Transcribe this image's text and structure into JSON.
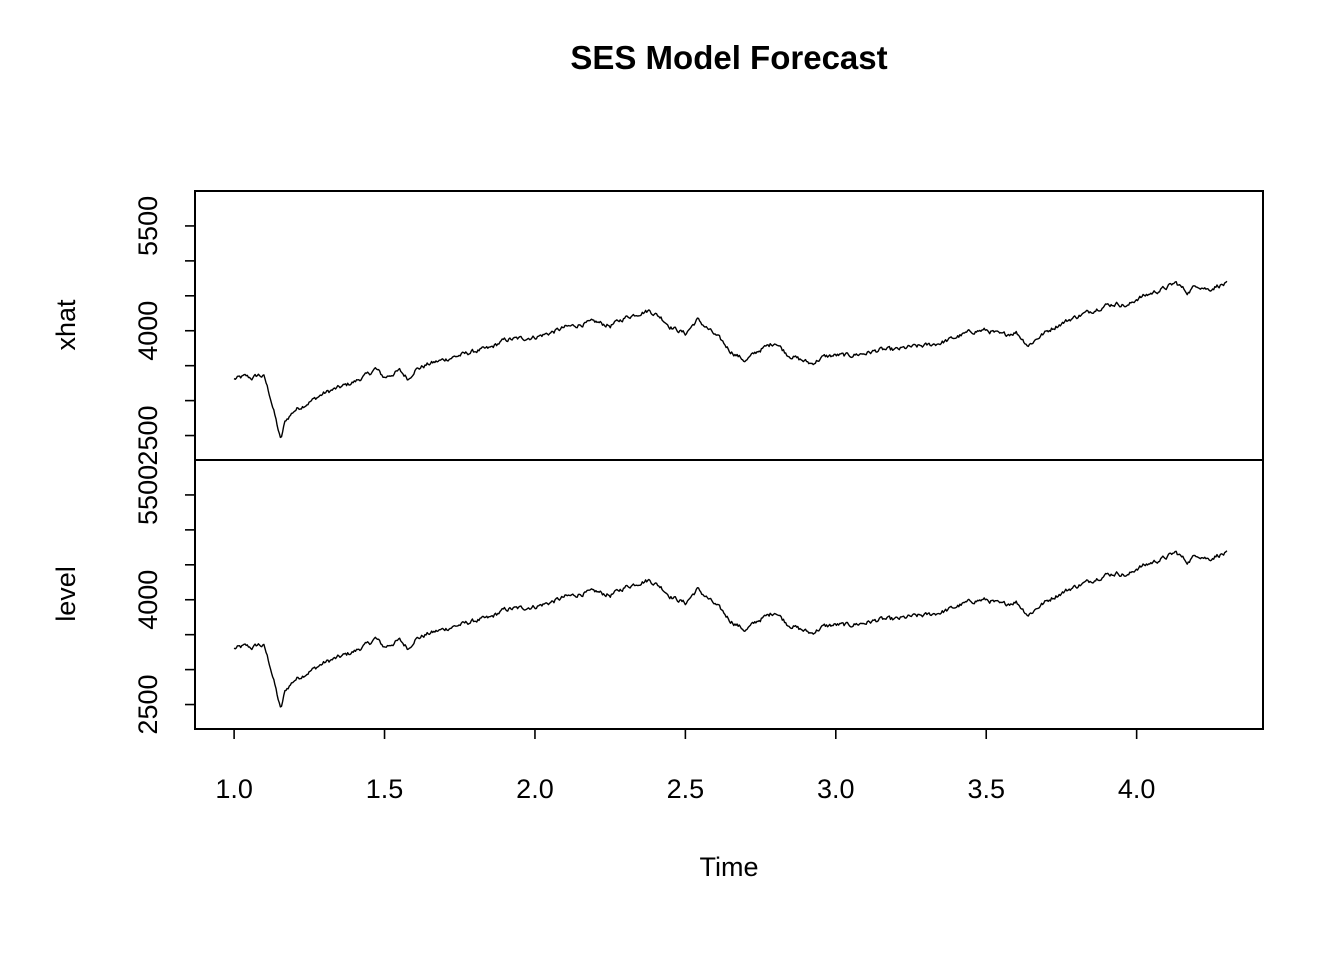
{
  "chart_data": {
    "type": "line",
    "title": "SES Model Forecast",
    "xlabel": "Time",
    "x_ticks": [
      "1.0",
      "1.5",
      "2.0",
      "2.5",
      "3.0",
      "3.5",
      "4.0"
    ],
    "x_tick_values": [
      1.0,
      1.5,
      2.0,
      2.5,
      3.0,
      3.5,
      4.0
    ],
    "xlim": [
      0.87,
      4.42
    ],
    "x_start": 1.0,
    "x_end": 4.3,
    "panels": [
      {
        "name": "xhat",
        "ylabel": "xhat",
        "ylim": [
          2150,
          6000
        ],
        "y_tick_values": [
          2500,
          3000,
          3500,
          4000,
          4500,
          5000,
          5500
        ],
        "y_tick_labels": [
          "2500",
          "",
          "",
          "4000",
          "",
          "",
          "5500"
        ]
      },
      {
        "name": "level",
        "ylabel": "level",
        "ylim": [
          2150,
          6000
        ],
        "y_tick_values": [
          2500,
          3000,
          3500,
          4000,
          4500,
          5000,
          5500
        ],
        "y_tick_labels": [
          "2500",
          "",
          "",
          "4000",
          "",
          "",
          "5500"
        ]
      }
    ],
    "series_keypoints": [
      [
        1.0,
        3300
      ],
      [
        1.04,
        3340
      ],
      [
        1.06,
        3310
      ],
      [
        1.08,
        3360
      ],
      [
        1.1,
        3330
      ],
      [
        1.12,
        3050
      ],
      [
        1.14,
        2700
      ],
      [
        1.155,
        2420
      ],
      [
        1.17,
        2700
      ],
      [
        1.2,
        2850
      ],
      [
        1.25,
        2970
      ],
      [
        1.3,
        3100
      ],
      [
        1.35,
        3180
      ],
      [
        1.4,
        3260
      ],
      [
        1.45,
        3380
      ],
      [
        1.47,
        3450
      ],
      [
        1.5,
        3320
      ],
      [
        1.55,
        3420
      ],
      [
        1.58,
        3300
      ],
      [
        1.6,
        3430
      ],
      [
        1.65,
        3520
      ],
      [
        1.7,
        3580
      ],
      [
        1.75,
        3640
      ],
      [
        1.8,
        3700
      ],
      [
        1.85,
        3740
      ],
      [
        1.9,
        3860
      ],
      [
        1.95,
        3880
      ],
      [
        2.0,
        3900
      ],
      [
        2.05,
        3960
      ],
      [
        2.1,
        4040
      ],
      [
        2.15,
        4080
      ],
      [
        2.2,
        4120
      ],
      [
        2.25,
        4060
      ],
      [
        2.3,
        4180
      ],
      [
        2.35,
        4250
      ],
      [
        2.38,
        4280
      ],
      [
        2.42,
        4180
      ],
      [
        2.45,
        4050
      ],
      [
        2.5,
        3950
      ],
      [
        2.54,
        4150
      ],
      [
        2.58,
        4000
      ],
      [
        2.62,
        3850
      ],
      [
        2.65,
        3700
      ],
      [
        2.7,
        3560
      ],
      [
        2.74,
        3700
      ],
      [
        2.8,
        3830
      ],
      [
        2.84,
        3650
      ],
      [
        2.88,
        3580
      ],
      [
        2.92,
        3520
      ],
      [
        2.96,
        3620
      ],
      [
        3.0,
        3640
      ],
      [
        3.05,
        3640
      ],
      [
        3.1,
        3670
      ],
      [
        3.15,
        3720
      ],
      [
        3.2,
        3720
      ],
      [
        3.25,
        3760
      ],
      [
        3.3,
        3780
      ],
      [
        3.35,
        3820
      ],
      [
        3.4,
        3900
      ],
      [
        3.45,
        3980
      ],
      [
        3.5,
        4000
      ],
      [
        3.55,
        3930
      ],
      [
        3.6,
        3970
      ],
      [
        3.64,
        3780
      ],
      [
        3.68,
        3920
      ],
      [
        3.72,
        4030
      ],
      [
        3.78,
        4160
      ],
      [
        3.84,
        4260
      ],
      [
        3.9,
        4360
      ],
      [
        3.94,
        4380
      ],
      [
        3.97,
        4340
      ],
      [
        4.0,
        4450
      ],
      [
        4.05,
        4530
      ],
      [
        4.1,
        4610
      ],
      [
        4.13,
        4680
      ],
      [
        4.17,
        4540
      ],
      [
        4.2,
        4650
      ],
      [
        4.24,
        4580
      ],
      [
        4.27,
        4640
      ],
      [
        4.3,
        4660
      ]
    ]
  }
}
